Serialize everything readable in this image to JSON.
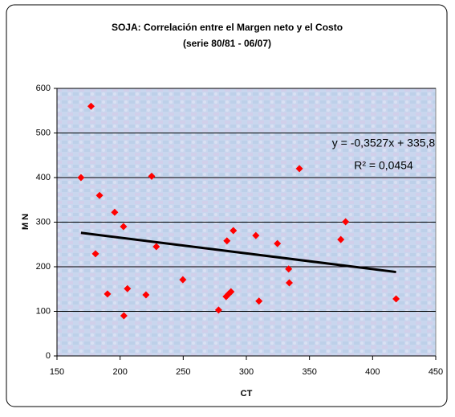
{
  "chart_data": {
    "type": "scatter",
    "title": "SOJA: Correlación entre el Margen neto y el Costo",
    "subtitle": "(serie 80/81 - 06/07)",
    "x_label": "CT",
    "y_label": "M N",
    "series": [
      {
        "color": "#ff0000",
        "x": [
          169,
          177,
          180.5,
          183.7,
          190,
          195.7,
          202.7,
          203,
          205.8,
          220.5,
          225,
          228.7,
          249.7,
          278,
          284,
          284.6,
          286,
          287.8,
          289.7,
          307.5,
          310,
          324.6,
          333.5,
          334,
          342,
          374.8,
          378.6,
          418.6
        ],
        "values": [
          400,
          560,
          229,
          360,
          139,
          322,
          290,
          90,
          151,
          137,
          403,
          245,
          171,
          103,
          133,
          258,
          139,
          144,
          281,
          270,
          123,
          252,
          195,
          164,
          420,
          261,
          301,
          128
        ]
      }
    ],
    "trendline": {
      "slope": -0.3527,
      "intercept": 335.8,
      "x": [
        169,
        418.6
      ],
      "color": "#000000",
      "equation": "y = -0,3527x + 335,8",
      "r2": "R² = 0,0454"
    },
    "xlim": [
      150,
      450
    ],
    "xticks": [
      150,
      200,
      250,
      300,
      350,
      400,
      450
    ],
    "ylim": [
      0,
      600
    ],
    "yticks": [
      0,
      100,
      200,
      300,
      400,
      500,
      600
    ],
    "grid": true
  }
}
